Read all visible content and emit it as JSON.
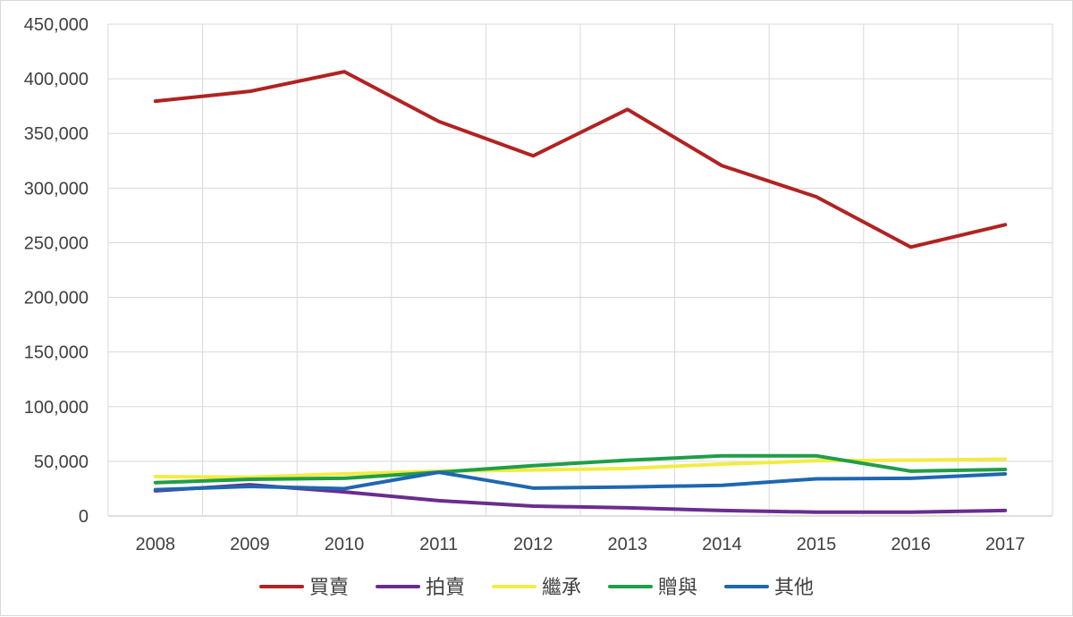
{
  "chart_data": {
    "type": "line",
    "title": "",
    "xlabel": "",
    "ylabel": "",
    "categories": [
      "2008",
      "2009",
      "2010",
      "2011",
      "2012",
      "2013",
      "2014",
      "2015",
      "2016",
      "2017"
    ],
    "ylim": [
      0,
      450000
    ],
    "yticks": [
      0,
      50000,
      100000,
      150000,
      200000,
      250000,
      300000,
      350000,
      400000,
      450000
    ],
    "ytick_labels": [
      "0",
      "50,000",
      "100,000",
      "150,000",
      "200,000",
      "250,000",
      "300,000",
      "350,000",
      "400,000",
      "450,000"
    ],
    "grid": true,
    "legend_position": "bottom",
    "series": [
      {
        "name": "買賣",
        "color": "#b22222",
        "values": [
          379500,
          388500,
          406500,
          361000,
          329500,
          372000,
          320500,
          292000,
          246000,
          266500
        ]
      },
      {
        "name": "拍賣",
        "color": "#6a2d8f",
        "values": [
          23000,
          28500,
          22000,
          14000,
          9000,
          7500,
          5000,
          3500,
          3500,
          5000
        ]
      },
      {
        "name": "繼承",
        "color": "#f2ec44",
        "values": [
          36000,
          35500,
          38500,
          41000,
          42000,
          43500,
          47500,
          50500,
          51000,
          52000
        ]
      },
      {
        "name": "贈與",
        "color": "#1f9e48",
        "values": [
          30500,
          33500,
          34500,
          40000,
          46000,
          51000,
          55000,
          55000,
          41000,
          42500
        ]
      },
      {
        "name": "其他",
        "color": "#1f67b0",
        "values": [
          24000,
          27000,
          25000,
          40000,
          25500,
          26500,
          28000,
          34000,
          34500,
          38500
        ]
      }
    ]
  }
}
